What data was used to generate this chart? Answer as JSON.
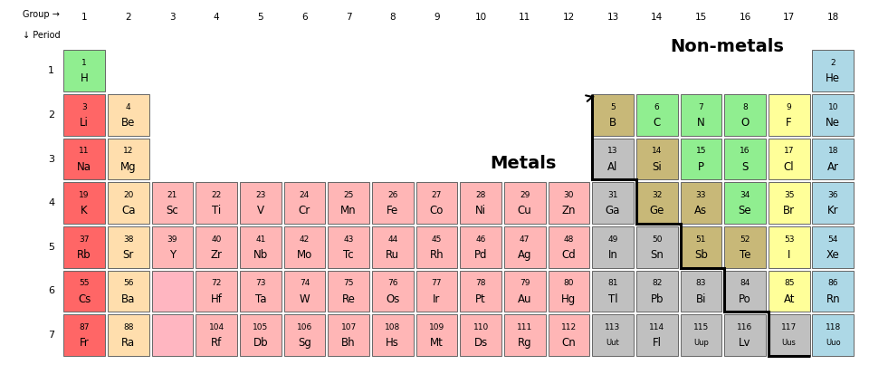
{
  "background": "#ffffff",
  "elements": [
    {
      "num": 1,
      "sym": "H",
      "period": 1,
      "group": 1,
      "color": "#90ee90"
    },
    {
      "num": 2,
      "sym": "He",
      "period": 1,
      "group": 18,
      "color": "#add8e6"
    },
    {
      "num": 3,
      "sym": "Li",
      "period": 2,
      "group": 1,
      "color": "#ff6666"
    },
    {
      "num": 4,
      "sym": "Be",
      "period": 2,
      "group": 2,
      "color": "#ffdead"
    },
    {
      "num": 5,
      "sym": "B",
      "period": 2,
      "group": 13,
      "color": "#c8b878"
    },
    {
      "num": 6,
      "sym": "C",
      "period": 2,
      "group": 14,
      "color": "#90ee90"
    },
    {
      "num": 7,
      "sym": "N",
      "period": 2,
      "group": 15,
      "color": "#90ee90"
    },
    {
      "num": 8,
      "sym": "O",
      "period": 2,
      "group": 16,
      "color": "#90ee90"
    },
    {
      "num": 9,
      "sym": "F",
      "period": 2,
      "group": 17,
      "color": "#ffff99"
    },
    {
      "num": 10,
      "sym": "Ne",
      "period": 2,
      "group": 18,
      "color": "#add8e6"
    },
    {
      "num": 11,
      "sym": "Na",
      "period": 3,
      "group": 1,
      "color": "#ff6666"
    },
    {
      "num": 12,
      "sym": "Mg",
      "period": 3,
      "group": 2,
      "color": "#ffdead"
    },
    {
      "num": 13,
      "sym": "Al",
      "period": 3,
      "group": 13,
      "color": "#c0c0c0"
    },
    {
      "num": 14,
      "sym": "Si",
      "period": 3,
      "group": 14,
      "color": "#c8b878"
    },
    {
      "num": 15,
      "sym": "P",
      "period": 3,
      "group": 15,
      "color": "#90ee90"
    },
    {
      "num": 16,
      "sym": "S",
      "period": 3,
      "group": 16,
      "color": "#90ee90"
    },
    {
      "num": 17,
      "sym": "Cl",
      "period": 3,
      "group": 17,
      "color": "#ffff99"
    },
    {
      "num": 18,
      "sym": "Ar",
      "period": 3,
      "group": 18,
      "color": "#add8e6"
    },
    {
      "num": 19,
      "sym": "K",
      "period": 4,
      "group": 1,
      "color": "#ff6666"
    },
    {
      "num": 20,
      "sym": "Ca",
      "period": 4,
      "group": 2,
      "color": "#ffdead"
    },
    {
      "num": 21,
      "sym": "Sc",
      "period": 4,
      "group": 3,
      "color": "#ffb6b6"
    },
    {
      "num": 22,
      "sym": "Ti",
      "period": 4,
      "group": 4,
      "color": "#ffb6b6"
    },
    {
      "num": 23,
      "sym": "V",
      "period": 4,
      "group": 5,
      "color": "#ffb6b6"
    },
    {
      "num": 24,
      "sym": "Cr",
      "period": 4,
      "group": 6,
      "color": "#ffb6b6"
    },
    {
      "num": 25,
      "sym": "Mn",
      "period": 4,
      "group": 7,
      "color": "#ffb6b6"
    },
    {
      "num": 26,
      "sym": "Fe",
      "period": 4,
      "group": 8,
      "color": "#ffb6b6"
    },
    {
      "num": 27,
      "sym": "Co",
      "period": 4,
      "group": 9,
      "color": "#ffb6b6"
    },
    {
      "num": 28,
      "sym": "Ni",
      "period": 4,
      "group": 10,
      "color": "#ffb6b6"
    },
    {
      "num": 29,
      "sym": "Cu",
      "period": 4,
      "group": 11,
      "color": "#ffb6b6"
    },
    {
      "num": 30,
      "sym": "Zn",
      "period": 4,
      "group": 12,
      "color": "#ffb6b6"
    },
    {
      "num": 31,
      "sym": "Ga",
      "period": 4,
      "group": 13,
      "color": "#c0c0c0"
    },
    {
      "num": 32,
      "sym": "Ge",
      "period": 4,
      "group": 14,
      "color": "#c8b878"
    },
    {
      "num": 33,
      "sym": "As",
      "period": 4,
      "group": 15,
      "color": "#c8b878"
    },
    {
      "num": 34,
      "sym": "Se",
      "period": 4,
      "group": 16,
      "color": "#90ee90"
    },
    {
      "num": 35,
      "sym": "Br",
      "period": 4,
      "group": 17,
      "color": "#ffff99"
    },
    {
      "num": 36,
      "sym": "Kr",
      "period": 4,
      "group": 18,
      "color": "#add8e6"
    },
    {
      "num": 37,
      "sym": "Rb",
      "period": 5,
      "group": 1,
      "color": "#ff6666"
    },
    {
      "num": 38,
      "sym": "Sr",
      "period": 5,
      "group": 2,
      "color": "#ffdead"
    },
    {
      "num": 39,
      "sym": "Y",
      "period": 5,
      "group": 3,
      "color": "#ffb6b6"
    },
    {
      "num": 40,
      "sym": "Zr",
      "period": 5,
      "group": 4,
      "color": "#ffb6b6"
    },
    {
      "num": 41,
      "sym": "Nb",
      "period": 5,
      "group": 5,
      "color": "#ffb6b6"
    },
    {
      "num": 42,
      "sym": "Mo",
      "period": 5,
      "group": 6,
      "color": "#ffb6b6"
    },
    {
      "num": 43,
      "sym": "Tc",
      "period": 5,
      "group": 7,
      "color": "#ffb6b6"
    },
    {
      "num": 44,
      "sym": "Ru",
      "period": 5,
      "group": 8,
      "color": "#ffb6b6"
    },
    {
      "num": 45,
      "sym": "Rh",
      "period": 5,
      "group": 9,
      "color": "#ffb6b6"
    },
    {
      "num": 46,
      "sym": "Pd",
      "period": 5,
      "group": 10,
      "color": "#ffb6b6"
    },
    {
      "num": 47,
      "sym": "Ag",
      "period": 5,
      "group": 11,
      "color": "#ffb6b6"
    },
    {
      "num": 48,
      "sym": "Cd",
      "period": 5,
      "group": 12,
      "color": "#ffb6b6"
    },
    {
      "num": 49,
      "sym": "In",
      "period": 5,
      "group": 13,
      "color": "#c0c0c0"
    },
    {
      "num": 50,
      "sym": "Sn",
      "period": 5,
      "group": 14,
      "color": "#c0c0c0"
    },
    {
      "num": 51,
      "sym": "Sb",
      "period": 5,
      "group": 15,
      "color": "#c8b878"
    },
    {
      "num": 52,
      "sym": "Te",
      "period": 5,
      "group": 16,
      "color": "#c8b878"
    },
    {
      "num": 53,
      "sym": "I",
      "period": 5,
      "group": 17,
      "color": "#ffff99"
    },
    {
      "num": 54,
      "sym": "Xe",
      "period": 5,
      "group": 18,
      "color": "#add8e6"
    },
    {
      "num": 55,
      "sym": "Cs",
      "period": 6,
      "group": 1,
      "color": "#ff6666"
    },
    {
      "num": 56,
      "sym": "Ba",
      "period": 6,
      "group": 2,
      "color": "#ffdead"
    },
    {
      "num": 72,
      "sym": "Hf",
      "period": 6,
      "group": 4,
      "color": "#ffb6b6"
    },
    {
      "num": 73,
      "sym": "Ta",
      "period": 6,
      "group": 5,
      "color": "#ffb6b6"
    },
    {
      "num": 74,
      "sym": "W",
      "period": 6,
      "group": 6,
      "color": "#ffb6b6"
    },
    {
      "num": 75,
      "sym": "Re",
      "period": 6,
      "group": 7,
      "color": "#ffb6b6"
    },
    {
      "num": 76,
      "sym": "Os",
      "period": 6,
      "group": 8,
      "color": "#ffb6b6"
    },
    {
      "num": 77,
      "sym": "Ir",
      "period": 6,
      "group": 9,
      "color": "#ffb6b6"
    },
    {
      "num": 78,
      "sym": "Pt",
      "period": 6,
      "group": 10,
      "color": "#ffb6b6"
    },
    {
      "num": 79,
      "sym": "Au",
      "period": 6,
      "group": 11,
      "color": "#ffb6b6"
    },
    {
      "num": 80,
      "sym": "Hg",
      "period": 6,
      "group": 12,
      "color": "#ffb6b6"
    },
    {
      "num": 81,
      "sym": "Tl",
      "period": 6,
      "group": 13,
      "color": "#c0c0c0"
    },
    {
      "num": 82,
      "sym": "Pb",
      "period": 6,
      "group": 14,
      "color": "#c0c0c0"
    },
    {
      "num": 83,
      "sym": "Bi",
      "period": 6,
      "group": 15,
      "color": "#c0c0c0"
    },
    {
      "num": 84,
      "sym": "Po",
      "period": 6,
      "group": 16,
      "color": "#c0c0c0"
    },
    {
      "num": 85,
      "sym": "At",
      "period": 6,
      "group": 17,
      "color": "#ffff99"
    },
    {
      "num": 86,
      "sym": "Rn",
      "period": 6,
      "group": 18,
      "color": "#add8e6"
    },
    {
      "num": 87,
      "sym": "Fr",
      "period": 7,
      "group": 1,
      "color": "#ff6666"
    },
    {
      "num": 88,
      "sym": "Ra",
      "period": 7,
      "group": 2,
      "color": "#ffdead"
    },
    {
      "num": 104,
      "sym": "Rf",
      "period": 7,
      "group": 4,
      "color": "#ffb6b6"
    },
    {
      "num": 105,
      "sym": "Db",
      "period": 7,
      "group": 5,
      "color": "#ffb6b6"
    },
    {
      "num": 106,
      "sym": "Sg",
      "period": 7,
      "group": 6,
      "color": "#ffb6b6"
    },
    {
      "num": 107,
      "sym": "Bh",
      "period": 7,
      "group": 7,
      "color": "#ffb6b6"
    },
    {
      "num": 108,
      "sym": "Hs",
      "period": 7,
      "group": 8,
      "color": "#ffb6b6"
    },
    {
      "num": 109,
      "sym": "Mt",
      "period": 7,
      "group": 9,
      "color": "#ffb6b6"
    },
    {
      "num": 110,
      "sym": "Ds",
      "period": 7,
      "group": 10,
      "color": "#ffb6b6"
    },
    {
      "num": 111,
      "sym": "Rg",
      "period": 7,
      "group": 11,
      "color": "#ffb6b6"
    },
    {
      "num": 112,
      "sym": "Cn",
      "period": 7,
      "group": 12,
      "color": "#ffb6b6"
    },
    {
      "num": 113,
      "sym": "Uut",
      "period": 7,
      "group": 13,
      "color": "#c0c0c0"
    },
    {
      "num": 114,
      "sym": "Fl",
      "period": 7,
      "group": 14,
      "color": "#c0c0c0"
    },
    {
      "num": 115,
      "sym": "Uup",
      "period": 7,
      "group": 15,
      "color": "#c0c0c0"
    },
    {
      "num": 116,
      "sym": "Lv",
      "period": 7,
      "group": 16,
      "color": "#c0c0c0"
    },
    {
      "num": 117,
      "sym": "Uus",
      "period": 7,
      "group": 17,
      "color": "#c0c0c0"
    },
    {
      "num": 118,
      "sym": "Uuo",
      "period": 7,
      "group": 18,
      "color": "#add8e6"
    }
  ],
  "lanthanide_placeholder": {
    "period": 6,
    "group": 3,
    "color": "#ffb6c1"
  },
  "actinide_placeholder": {
    "period": 7,
    "group": 3,
    "color": "#ffb6c1"
  },
  "group_labels": [
    1,
    2,
    3,
    4,
    5,
    6,
    7,
    8,
    9,
    10,
    11,
    12,
    13,
    14,
    15,
    16,
    17,
    18
  ],
  "period_labels": [
    1,
    2,
    3,
    4,
    5,
    6,
    7
  ],
  "metals_label": {
    "text": "Metals",
    "fontsize": 14
  },
  "nonmetals_label": {
    "text": "Non-metals",
    "fontsize": 14
  }
}
